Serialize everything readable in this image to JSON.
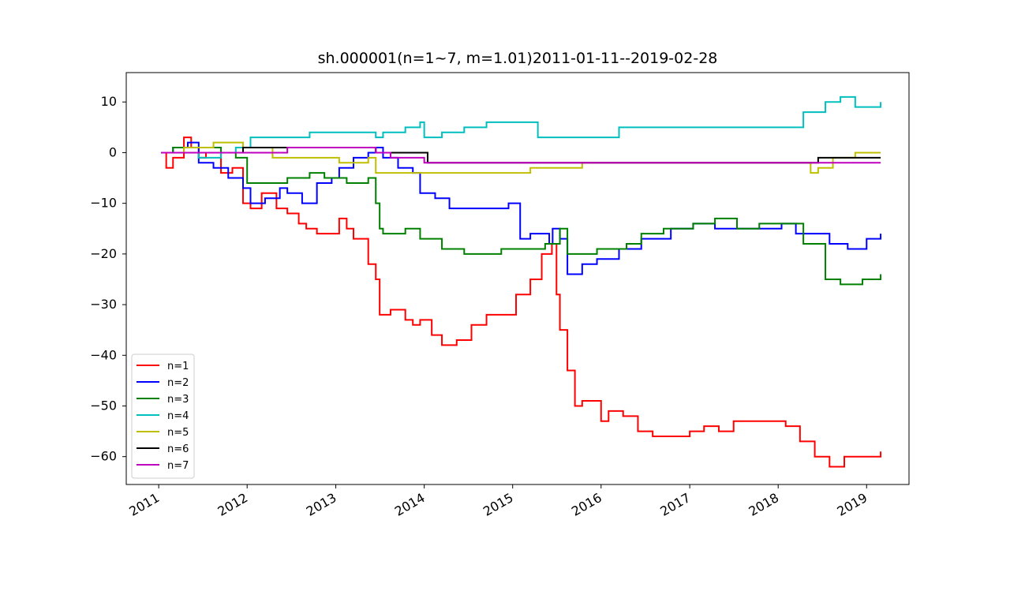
{
  "chart_data": {
    "type": "line",
    "title": "sh.000001(n=1~7, m=1.01)2011-01-11--2019-02-28",
    "xlabel": "",
    "ylabel": "",
    "x_range": [
      "2010-08-20",
      "2019-06-25"
    ],
    "ylim": [
      -65.5,
      15.8
    ],
    "x_ticks": [
      "2011",
      "2012",
      "2013",
      "2014",
      "2015",
      "2016",
      "2017",
      "2018",
      "2019"
    ],
    "y_ticks": [
      10,
      0,
      -10,
      -20,
      -30,
      -40,
      -50,
      -60
    ],
    "grid": false,
    "legend_position": "lower-left",
    "series": [
      {
        "name": "n=1",
        "color": "#ff0000",
        "x": [
          "2011-01-11",
          "2011-02-01",
          "2011-03-01",
          "2011-04-15",
          "2011-05-15",
          "2011-06-15",
          "2011-07-15",
          "2011-09-15",
          "2011-11-01",
          "2011-12-15",
          "2012-01-15",
          "2012-03-01",
          "2012-05-01",
          "2012-06-15",
          "2012-08-01",
          "2012-09-01",
          "2012-10-15",
          "2012-12-15",
          "2013-01-15",
          "2013-02-15",
          "2013-03-15",
          "2013-05-15",
          "2013-06-15",
          "2013-07-01",
          "2013-08-15",
          "2013-10-15",
          "2013-11-15",
          "2013-12-15",
          "2014-02-01",
          "2014-03-15",
          "2014-05-15",
          "2014-07-15",
          "2014-09-15",
          "2014-11-15",
          "2015-01-15",
          "2015-03-15",
          "2015-05-01",
          "2015-06-12",
          "2015-07-01",
          "2015-07-15",
          "2015-08-15",
          "2015-09-15",
          "2015-10-15",
          "2016-01-01",
          "2016-02-01",
          "2016-04-01",
          "2016-06-01",
          "2016-08-01",
          "2016-10-01",
          "2017-01-01",
          "2017-03-01",
          "2017-05-01",
          "2017-07-01",
          "2017-09-01",
          "2017-12-01",
          "2018-02-01",
          "2018-04-01",
          "2018-06-01",
          "2018-08-01",
          "2018-10-01",
          "2018-12-01",
          "2019-02-28"
        ],
        "y": [
          0,
          -3,
          -1,
          3,
          1,
          -1,
          0,
          -4,
          -3,
          -10,
          -11,
          -8,
          -11,
          -12,
          -14,
          -15,
          -16,
          -16,
          -13,
          -15,
          -17,
          -22,
          -25,
          -32,
          -31,
          -33,
          -34,
          -33,
          -36,
          -38,
          -37,
          -34,
          -32,
          -32,
          -28,
          -25,
          -20,
          -18,
          -28,
          -35,
          -43,
          -50,
          -49,
          -53,
          -51,
          -52,
          -55,
          -56,
          -56,
          -55,
          -54,
          -55,
          -53,
          -53,
          -53,
          -54,
          -57,
          -60,
          -62,
          -60,
          -60,
          -59
        ]
      },
      {
        "name": "n=2",
        "color": "#0000ff",
        "x": [
          "2011-01-11",
          "2011-03-01",
          "2011-05-01",
          "2011-06-15",
          "2011-08-15",
          "2011-10-15",
          "2011-12-15",
          "2012-01-15",
          "2012-03-15",
          "2012-05-15",
          "2012-06-15",
          "2012-08-15",
          "2012-10-15",
          "2012-12-15",
          "2013-01-15",
          "2013-03-15",
          "2013-05-15",
          "2013-06-15",
          "2013-07-15",
          "2013-09-15",
          "2013-11-15",
          "2013-12-15",
          "2014-02-15",
          "2014-04-15",
          "2014-06-15",
          "2014-09-15",
          "2014-12-15",
          "2015-02-01",
          "2015-03-15",
          "2015-05-15",
          "2015-06-01",
          "2015-06-15",
          "2015-07-15",
          "2015-08-15",
          "2015-10-15",
          "2015-12-15",
          "2016-03-15",
          "2016-06-15",
          "2016-10-15",
          "2017-01-15",
          "2017-04-15",
          "2017-07-15",
          "2017-10-15",
          "2018-01-15",
          "2018-03-15",
          "2018-05-15",
          "2018-08-01",
          "2018-10-15",
          "2019-01-01",
          "2019-02-28"
        ],
        "y": [
          0,
          1,
          2,
          -2,
          -3,
          -5,
          -7,
          -10,
          -9,
          -7,
          -8,
          -10,
          -6,
          -5,
          -3,
          -1,
          0,
          1,
          -1,
          -3,
          -4,
          -8,
          -9,
          -11,
          -11,
          -11,
          -10,
          -17,
          -16,
          -16,
          -18,
          -15,
          -17,
          -24,
          -22,
          -21,
          -19,
          -17,
          -15,
          -14,
          -15,
          -15,
          -15,
          -14,
          -16,
          -16,
          -18,
          -19,
          -17,
          -16
        ]
      },
      {
        "name": "n=3",
        "color": "#008000",
        "x": [
          "2011-01-11",
          "2011-03-01",
          "2011-06-15",
          "2011-09-15",
          "2011-11-15",
          "2012-01-01",
          "2012-03-15",
          "2012-06-15",
          "2012-09-15",
          "2012-11-15",
          "2013-02-15",
          "2013-04-15",
          "2013-05-15",
          "2013-06-15",
          "2013-07-01",
          "2013-07-15",
          "2013-10-15",
          "2013-12-15",
          "2014-03-15",
          "2014-06-15",
          "2014-08-15",
          "2014-11-15",
          "2015-03-15",
          "2015-05-15",
          "2015-07-15",
          "2015-08-15",
          "2015-12-15",
          "2016-04-15",
          "2016-06-15",
          "2016-09-15",
          "2017-01-15",
          "2017-04-15",
          "2017-07-15",
          "2017-10-15",
          "2018-01-15",
          "2018-04-15",
          "2018-07-15",
          "2018-09-15",
          "2018-12-15",
          "2019-02-28"
        ],
        "y": [
          0,
          1,
          1,
          0,
          -1,
          -6,
          -6,
          -5,
          -4,
          -5,
          -6,
          -6,
          -5,
          -10,
          -15,
          -16,
          -15,
          -17,
          -19,
          -20,
          -20,
          -19,
          -19,
          -18,
          -15,
          -20,
          -19,
          -18,
          -16,
          -15,
          -14,
          -13,
          -15,
          -14,
          -14,
          -18,
          -25,
          -26,
          -25,
          -24
        ]
      },
      {
        "name": "n=4",
        "color": "#00bfbf",
        "x": [
          "2011-01-11",
          "2011-04-15",
          "2011-06-15",
          "2011-09-15",
          "2011-11-15",
          "2012-01-15",
          "2012-06-15",
          "2012-09-15",
          "2012-12-15",
          "2013-03-15",
          "2013-06-15",
          "2013-07-15",
          "2013-10-15",
          "2013-12-15",
          "2014-01-01",
          "2014-03-15",
          "2014-06-15",
          "2014-09-15",
          "2015-01-15",
          "2015-04-15",
          "2015-07-15",
          "2015-10-15",
          "2016-03-15",
          "2016-07-15",
          "2016-10-15",
          "2017-01-15",
          "2017-04-15",
          "2017-07-15",
          "2017-10-15",
          "2018-01-01",
          "2018-04-15",
          "2018-07-15",
          "2018-09-15",
          "2018-11-15",
          "2019-02-28"
        ],
        "y": [
          0,
          0,
          -1,
          0,
          1,
          3,
          3,
          4,
          4,
          4,
          3,
          4,
          5,
          6,
          3,
          4,
          5,
          6,
          6,
          3,
          3,
          3,
          5,
          5,
          5,
          5,
          5,
          5,
          5,
          5,
          8,
          10,
          11,
          9,
          10
        ]
      },
      {
        "name": "n=5",
        "color": "#bfbf00",
        "x": [
          "2011-01-11",
          "2011-04-15",
          "2011-08-15",
          "2011-12-15",
          "2012-04-15",
          "2012-08-15",
          "2013-01-15",
          "2013-05-15",
          "2013-06-15",
          "2013-12-15",
          "2014-06-15",
          "2014-11-15",
          "2015-03-15",
          "2015-07-15",
          "2015-10-15",
          "2016-06-15",
          "2017-01-15",
          "2017-06-15",
          "2018-01-15",
          "2018-05-15",
          "2018-06-15",
          "2018-08-15",
          "2018-11-15",
          "2019-02-28"
        ],
        "y": [
          0,
          1,
          2,
          1,
          -1,
          -1,
          -2,
          -1,
          -4,
          -4,
          -4,
          -4,
          -3,
          -3,
          -2,
          -2,
          -2,
          -2,
          -2,
          -4,
          -3,
          -1,
          0,
          0
        ]
      },
      {
        "name": "n=6",
        "color": "#000000",
        "x": [
          "2011-01-11",
          "2011-04-15",
          "2011-09-15",
          "2011-12-15",
          "2012-06-15",
          "2012-12-15",
          "2013-06-15",
          "2013-07-15",
          "2013-12-15",
          "2014-01-15",
          "2015-01-15",
          "2016-01-15",
          "2017-01-15",
          "2018-01-15",
          "2018-05-01",
          "2018-06-15",
          "2019-02-28"
        ],
        "y": [
          0,
          0,
          0,
          1,
          1,
          1,
          0,
          0,
          0,
          -2,
          -2,
          -2,
          -2,
          -2,
          -2,
          -1,
          -1
        ]
      },
      {
        "name": "n=7",
        "color": "#bf00bf",
        "x": [
          "2011-01-11",
          "2011-06-15",
          "2012-01-15",
          "2012-06-15",
          "2013-01-15",
          "2013-06-15",
          "2013-08-15",
          "2014-01-01",
          "2015-01-15",
          "2016-01-15",
          "2017-01-15",
          "2018-01-15",
          "2019-02-28"
        ],
        "y": [
          0,
          0,
          0,
          1,
          1,
          0,
          -1,
          -2,
          -2,
          -2,
          -2,
          -2,
          -2
        ]
      }
    ]
  }
}
